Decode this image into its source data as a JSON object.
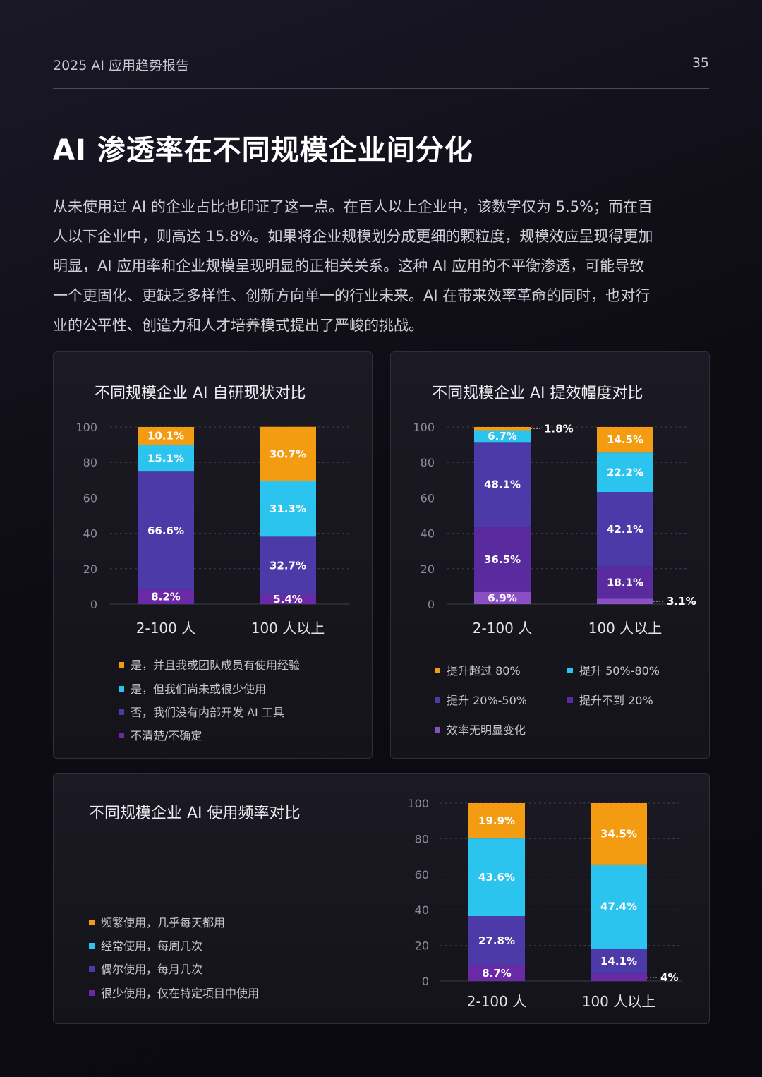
{
  "header": {
    "report_title": "2025 AI 应用趋势报告",
    "page_number": "35"
  },
  "main_title": "AI 渗透率在不同规模企业间分化",
  "paragraph_lines": [
    "从未使用过 AI 的企业占比也印证了这一点。在百人以上企业中，该数字仅为 5.5%；而在百",
    "人以下企业中，则高达 15.8%。如果将企业规模划分成更细的颗粒度，规模效应呈现得更加",
    "明显，AI 应用率和企业规模呈现明显的正相关关系。这种 AI 应用的不平衡渗透，可能导致",
    "一个更固化、更缺乏多样性、创新方向单一的行业未来。AI 在带来效率革命的同时，也对行",
    "业的公平性、创造力和人才培养模式提出了严峻的挑战。"
  ],
  "chart_data": [
    {
      "type": "bar",
      "stacked": true,
      "title": "不同规模企业 AI 自研现状对比",
      "categories": [
        "2-100 人",
        "100 人以上"
      ],
      "ylim": [
        0,
        100
      ],
      "yticks": [
        "0",
        "20",
        "40",
        "60",
        "80",
        "100"
      ],
      "grid": true,
      "series": [
        {
          "name": "是，并且我或团队成员有使用经验",
          "color": "#f39c12",
          "values": [
            10.1,
            30.7
          ],
          "labels": [
            "10.1%",
            "30.7%"
          ]
        },
        {
          "name": "是，但我们尚未或很少使用",
          "color": "#2bc4ee",
          "values": [
            15.1,
            31.3
          ],
          "labels": [
            "15.1%",
            "31.3%"
          ]
        },
        {
          "name": "否，我们没有内部开发 AI 工具",
          "color": "#4b3aa7",
          "values": [
            66.6,
            32.7
          ],
          "labels": [
            "66.6%",
            "32.7%"
          ]
        },
        {
          "name": "不清楚/不确定",
          "color": "#6a2aa8",
          "values": [
            8.2,
            5.4
          ],
          "labels": [
            "8.2%",
            "5.4%"
          ]
        }
      ]
    },
    {
      "type": "bar",
      "stacked": true,
      "title": "不同规模企业 AI 提效幅度对比",
      "categories": [
        "2-100 人",
        "100 人以上"
      ],
      "ylim": [
        0,
        100
      ],
      "yticks": [
        "0",
        "20",
        "40",
        "60",
        "80",
        "100"
      ],
      "grid": true,
      "series": [
        {
          "name": "提升超过 80%",
          "color": "#f39c12",
          "values": [
            1.8,
            14.5
          ],
          "labels": [
            "1.8%",
            "14.5%"
          ]
        },
        {
          "name": "提升 50%-80%",
          "color": "#2bc4ee",
          "values": [
            6.7,
            22.2
          ],
          "labels": [
            "6.7%",
            "22.2%"
          ]
        },
        {
          "name": "提升 20%-50%",
          "color": "#4b3aa7",
          "values": [
            48.1,
            42.1
          ],
          "labels": [
            "48.1%",
            "42.1%"
          ]
        },
        {
          "name": "提升不到 20%",
          "color": "#5a2b9e",
          "values": [
            36.5,
            18.1
          ],
          "labels": [
            "36.5%",
            "18.1%"
          ]
        },
        {
          "name": "效率无明显变化",
          "color": "#8a4fc4",
          "values": [
            6.9,
            3.1
          ],
          "labels": [
            "6.9%",
            "3.1%"
          ]
        }
      ]
    },
    {
      "type": "bar",
      "stacked": true,
      "title": "不同规模企业 AI 使用频率对比",
      "categories": [
        "2-100 人",
        "100 人以上"
      ],
      "ylim": [
        0,
        100
      ],
      "yticks": [
        "0",
        "20",
        "40",
        "60",
        "80",
        "100"
      ],
      "grid": true,
      "series": [
        {
          "name": "频繁使用，几乎每天都用",
          "color": "#f39c12",
          "values": [
            19.9,
            34.5
          ],
          "labels": [
            "19.9%",
            "34.5%"
          ]
        },
        {
          "name": "经常使用，每周几次",
          "color": "#2bc4ee",
          "values": [
            43.6,
            47.4
          ],
          "labels": [
            "43.6%",
            "47.4%"
          ]
        },
        {
          "name": "偶尔使用，每月几次",
          "color": "#4b3aa7",
          "values": [
            27.8,
            14.1
          ],
          "labels": [
            "27.8%",
            "14.1%"
          ]
        },
        {
          "name": "很少使用，仅在特定项目中使用",
          "color": "#6a2aa8",
          "values": [
            8.7,
            4
          ],
          "labels": [
            "8.7%",
            "4%"
          ]
        }
      ]
    }
  ]
}
